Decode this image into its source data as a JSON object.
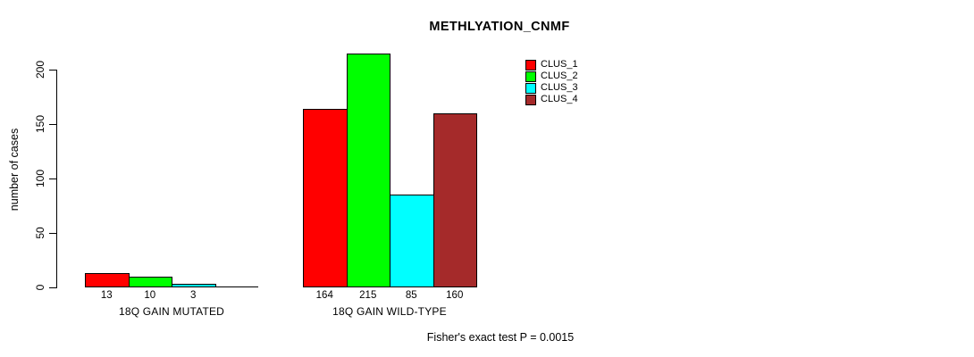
{
  "chart_data": {
    "type": "bar",
    "title": "METHLYATION_CNMF",
    "xlabel": "",
    "ylabel": "number of cases",
    "ylim": [
      0,
      220
    ],
    "yticks": [
      0,
      50,
      100,
      150,
      200
    ],
    "grid": false,
    "legend_position": "top-right",
    "categories": [
      "18Q GAIN MUTATED",
      "18Q GAIN WILD-TYPE"
    ],
    "series": [
      {
        "name": "CLUS_1",
        "color": "#ff0000",
        "values": [
          13,
          164
        ]
      },
      {
        "name": "CLUS_2",
        "color": "#00ff00",
        "values": [
          10,
          215
        ]
      },
      {
        "name": "CLUS_3",
        "color": "#00ffff",
        "values": [
          3,
          85
        ]
      },
      {
        "name": "CLUS_4",
        "color": "#a52a2a",
        "values": [
          0,
          160
        ]
      }
    ],
    "show_bar_values": true,
    "zero_value_labels_hidden": true,
    "annotation": "Fisher's exact test P = 0.0015"
  }
}
